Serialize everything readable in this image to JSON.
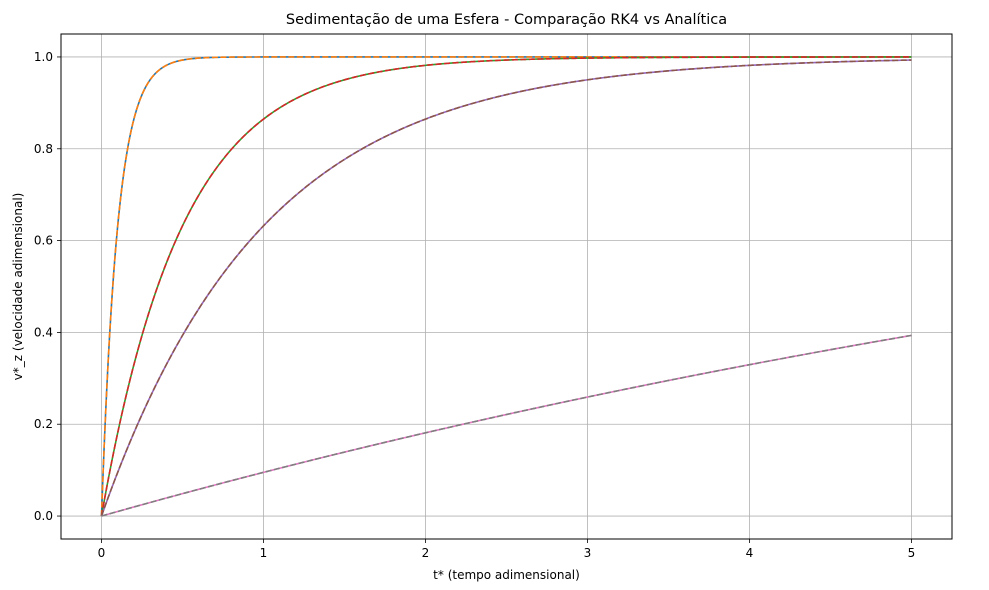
{
  "chart_data": {
    "type": "line",
    "title": "Sedimentação de uma Esfera - Comparação RK4 vs Analítica",
    "xlabel": "t* (tempo adimensional)",
    "ylabel": "v*_z (velocidade adimensional)",
    "xlim": [
      -0.25,
      5.25
    ],
    "ylim": [
      -0.05,
      1.05
    ],
    "xticks": [
      0,
      1,
      2,
      3,
      4,
      5
    ],
    "xtick_labels": [
      "0",
      "1",
      "2",
      "3",
      "4",
      "5"
    ],
    "yticks": [
      0.0,
      0.2,
      0.4,
      0.6,
      0.8,
      1.0
    ],
    "ytick_labels": [
      "0.0",
      "0.2",
      "0.4",
      "0.6",
      "0.8",
      "1.0"
    ],
    "grid": true,
    "legend": "none",
    "x_range": [
      0,
      5
    ],
    "series": [
      {
        "tau": 0.1,
        "color": "#1f77b4",
        "style": "solid"
      },
      {
        "tau": 0.1,
        "color": "#ff7f0e",
        "style": "dashed"
      },
      {
        "tau": 0.5,
        "color": "#2ca02c",
        "style": "solid"
      },
      {
        "tau": 0.5,
        "color": "#d62728",
        "style": "dashed"
      },
      {
        "tau": 1.0,
        "color": "#9467bd",
        "style": "solid"
      },
      {
        "tau": 1.0,
        "color": "#8c564b",
        "style": "dashed"
      },
      {
        "tau": 10.0,
        "color": "#e377c2",
        "style": "solid"
      },
      {
        "tau": 10.0,
        "color": "#7f7f7f",
        "style": "dashed"
      }
    ]
  }
}
